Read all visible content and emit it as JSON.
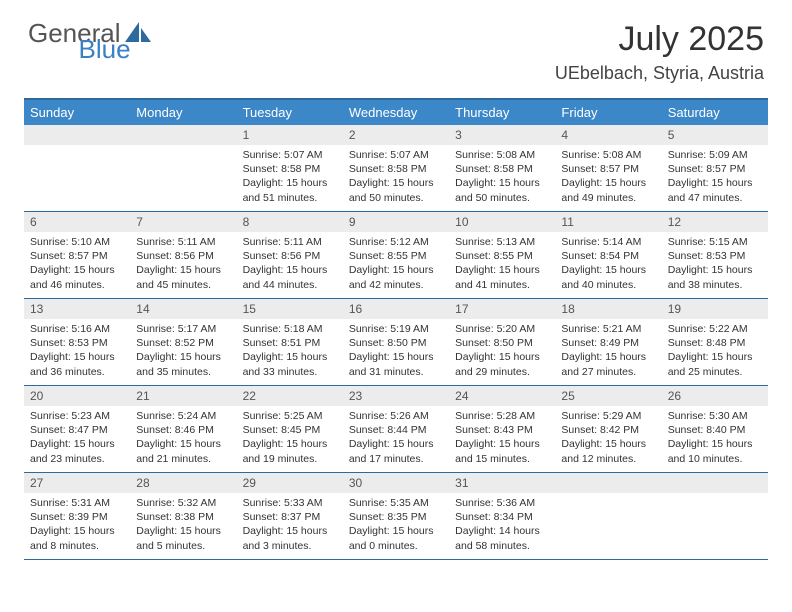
{
  "logo": {
    "word1": "General",
    "word2": "Blue"
  },
  "title": "July 2025",
  "location": "UEbelbach, Styria, Austria",
  "colors": {
    "header_bg": "#3b87c8",
    "border": "#2d6aa0",
    "daynum_bg": "#ececec",
    "logo_blue": "#3b7fc4"
  },
  "day_names": [
    "Sunday",
    "Monday",
    "Tuesday",
    "Wednesday",
    "Thursday",
    "Friday",
    "Saturday"
  ],
  "weeks": [
    [
      {
        "n": "",
        "sr": "",
        "ss": "",
        "dl": ""
      },
      {
        "n": "",
        "sr": "",
        "ss": "",
        "dl": ""
      },
      {
        "n": "1",
        "sr": "5:07 AM",
        "ss": "8:58 PM",
        "dl": "15 hours and 51 minutes."
      },
      {
        "n": "2",
        "sr": "5:07 AM",
        "ss": "8:58 PM",
        "dl": "15 hours and 50 minutes."
      },
      {
        "n": "3",
        "sr": "5:08 AM",
        "ss": "8:58 PM",
        "dl": "15 hours and 50 minutes."
      },
      {
        "n": "4",
        "sr": "5:08 AM",
        "ss": "8:57 PM",
        "dl": "15 hours and 49 minutes."
      },
      {
        "n": "5",
        "sr": "5:09 AM",
        "ss": "8:57 PM",
        "dl": "15 hours and 47 minutes."
      }
    ],
    [
      {
        "n": "6",
        "sr": "5:10 AM",
        "ss": "8:57 PM",
        "dl": "15 hours and 46 minutes."
      },
      {
        "n": "7",
        "sr": "5:11 AM",
        "ss": "8:56 PM",
        "dl": "15 hours and 45 minutes."
      },
      {
        "n": "8",
        "sr": "5:11 AM",
        "ss": "8:56 PM",
        "dl": "15 hours and 44 minutes."
      },
      {
        "n": "9",
        "sr": "5:12 AM",
        "ss": "8:55 PM",
        "dl": "15 hours and 42 minutes."
      },
      {
        "n": "10",
        "sr": "5:13 AM",
        "ss": "8:55 PM",
        "dl": "15 hours and 41 minutes."
      },
      {
        "n": "11",
        "sr": "5:14 AM",
        "ss": "8:54 PM",
        "dl": "15 hours and 40 minutes."
      },
      {
        "n": "12",
        "sr": "5:15 AM",
        "ss": "8:53 PM",
        "dl": "15 hours and 38 minutes."
      }
    ],
    [
      {
        "n": "13",
        "sr": "5:16 AM",
        "ss": "8:53 PM",
        "dl": "15 hours and 36 minutes."
      },
      {
        "n": "14",
        "sr": "5:17 AM",
        "ss": "8:52 PM",
        "dl": "15 hours and 35 minutes."
      },
      {
        "n": "15",
        "sr": "5:18 AM",
        "ss": "8:51 PM",
        "dl": "15 hours and 33 minutes."
      },
      {
        "n": "16",
        "sr": "5:19 AM",
        "ss": "8:50 PM",
        "dl": "15 hours and 31 minutes."
      },
      {
        "n": "17",
        "sr": "5:20 AM",
        "ss": "8:50 PM",
        "dl": "15 hours and 29 minutes."
      },
      {
        "n": "18",
        "sr": "5:21 AM",
        "ss": "8:49 PM",
        "dl": "15 hours and 27 minutes."
      },
      {
        "n": "19",
        "sr": "5:22 AM",
        "ss": "8:48 PM",
        "dl": "15 hours and 25 minutes."
      }
    ],
    [
      {
        "n": "20",
        "sr": "5:23 AM",
        "ss": "8:47 PM",
        "dl": "15 hours and 23 minutes."
      },
      {
        "n": "21",
        "sr": "5:24 AM",
        "ss": "8:46 PM",
        "dl": "15 hours and 21 minutes."
      },
      {
        "n": "22",
        "sr": "5:25 AM",
        "ss": "8:45 PM",
        "dl": "15 hours and 19 minutes."
      },
      {
        "n": "23",
        "sr": "5:26 AM",
        "ss": "8:44 PM",
        "dl": "15 hours and 17 minutes."
      },
      {
        "n": "24",
        "sr": "5:28 AM",
        "ss": "8:43 PM",
        "dl": "15 hours and 15 minutes."
      },
      {
        "n": "25",
        "sr": "5:29 AM",
        "ss": "8:42 PM",
        "dl": "15 hours and 12 minutes."
      },
      {
        "n": "26",
        "sr": "5:30 AM",
        "ss": "8:40 PM",
        "dl": "15 hours and 10 minutes."
      }
    ],
    [
      {
        "n": "27",
        "sr": "5:31 AM",
        "ss": "8:39 PM",
        "dl": "15 hours and 8 minutes."
      },
      {
        "n": "28",
        "sr": "5:32 AM",
        "ss": "8:38 PM",
        "dl": "15 hours and 5 minutes."
      },
      {
        "n": "29",
        "sr": "5:33 AM",
        "ss": "8:37 PM",
        "dl": "15 hours and 3 minutes."
      },
      {
        "n": "30",
        "sr": "5:35 AM",
        "ss": "8:35 PM",
        "dl": "15 hours and 0 minutes."
      },
      {
        "n": "31",
        "sr": "5:36 AM",
        "ss": "8:34 PM",
        "dl": "14 hours and 58 minutes."
      },
      {
        "n": "",
        "sr": "",
        "ss": "",
        "dl": ""
      },
      {
        "n": "",
        "sr": "",
        "ss": "",
        "dl": ""
      }
    ]
  ],
  "labels": {
    "sunrise": "Sunrise:",
    "sunset": "Sunset:",
    "daylight": "Daylight:"
  }
}
